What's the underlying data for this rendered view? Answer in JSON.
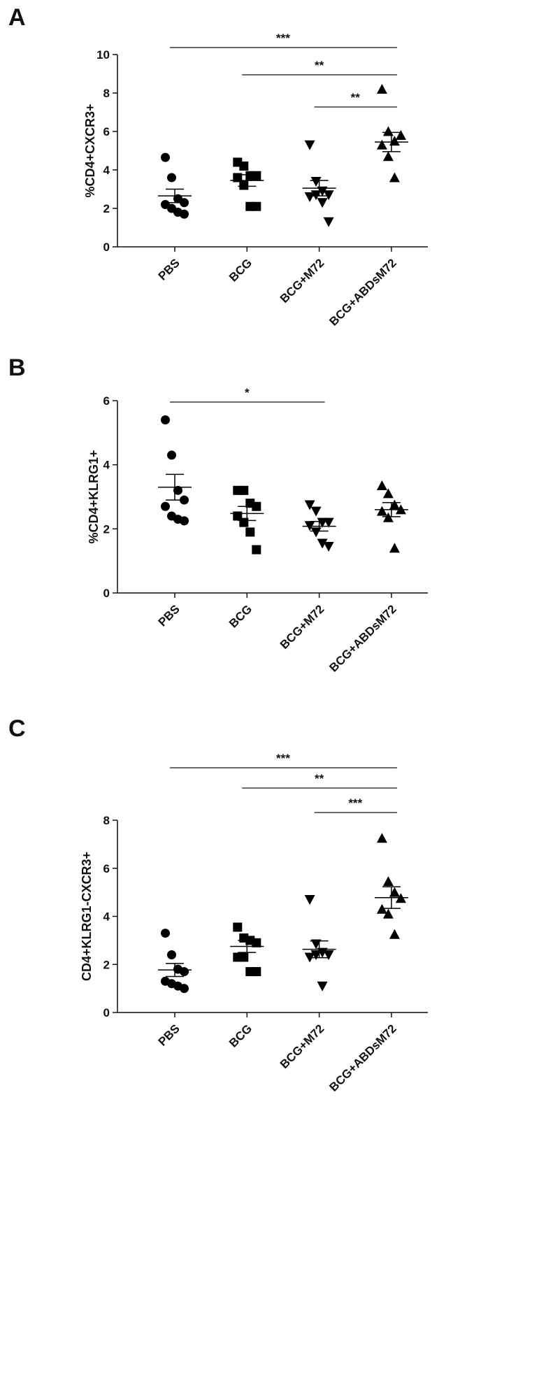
{
  "chart_data": [
    {
      "type": "dot",
      "panel": "A",
      "ylabel": "%CD4+CXCR3+",
      "categories": [
        "PBS",
        "BCG",
        "BCG+M72",
        "BCG+ABDsM72"
      ],
      "markers": [
        "circle",
        "square",
        "triangle-down",
        "triangle-up"
      ],
      "color": "#000000",
      "values": [
        [
          4.65,
          3.6,
          2.5,
          2.3,
          2.2,
          2.0,
          1.8,
          1.7
        ],
        [
          4.4,
          4.2,
          3.7,
          3.7,
          3.6,
          3.2,
          2.1,
          2.1
        ],
        [
          5.3,
          3.4,
          2.9,
          2.7,
          2.6,
          2.7,
          2.3,
          1.3
        ],
        [
          8.2,
          6.0,
          5.5,
          5.8,
          5.3,
          4.7,
          3.6
        ]
      ],
      "means": [
        2.65,
        3.45,
        3.05,
        5.45
      ],
      "errors": [
        0.35,
        0.3,
        0.4,
        0.5
      ],
      "ylim": [
        0,
        10
      ],
      "yticks": [
        0,
        2,
        4,
        6,
        8,
        10
      ],
      "significance": [
        {
          "label": "***",
          "from": "PBS",
          "to": "BCG+ABDsM72"
        },
        {
          "label": "**",
          "from": "BCG",
          "to": "BCG+ABDsM72"
        },
        {
          "label": "**",
          "from": "BCG+M72",
          "to": "BCG+ABDsM72"
        }
      ]
    },
    {
      "type": "dot",
      "panel": "B",
      "ylabel": "%CD4+KLRG1+",
      "categories": [
        "PBS",
        "BCG",
        "BCG+M72",
        "BCG+ABDsM72"
      ],
      "markers": [
        "circle",
        "square",
        "triangle-down",
        "triangle-up"
      ],
      "color": "#000000",
      "values": [
        [
          5.4,
          4.3,
          3.2,
          2.9,
          2.7,
          2.4,
          2.3,
          2.25
        ],
        [
          3.2,
          3.2,
          2.8,
          2.7,
          2.4,
          2.2,
          1.9,
          1.35
        ],
        [
          2.75,
          2.55,
          2.2,
          2.2,
          2.1,
          1.9,
          1.55,
          1.45
        ],
        [
          3.35,
          3.1,
          2.75,
          2.6,
          2.55,
          2.35,
          1.4
        ]
      ],
      "means": [
        3.3,
        2.48,
        2.08,
        2.6
      ],
      "errors": [
        0.4,
        0.22,
        0.15,
        0.22
      ],
      "ylim": [
        0,
        6
      ],
      "yticks": [
        0,
        2,
        4,
        6
      ],
      "significance": [
        {
          "label": "*",
          "from": "PBS",
          "to": "BCG+M72"
        }
      ]
    },
    {
      "type": "dot",
      "panel": "C",
      "ylabel": "CD4+KLRG1-CXCR3+",
      "categories": [
        "PBS",
        "BCG",
        "BCG+M72",
        "BCG+ABDsM72"
      ],
      "markers": [
        "circle",
        "square",
        "triangle-down",
        "triangle-up"
      ],
      "color": "#000000",
      "values": [
        [
          3.3,
          2.4,
          1.8,
          1.7,
          1.3,
          1.2,
          1.1,
          1.0
        ],
        [
          3.55,
          3.1,
          3.0,
          2.9,
          2.3,
          2.3,
          1.7,
          1.7
        ],
        [
          4.7,
          2.85,
          2.5,
          2.4,
          2.3,
          2.4,
          1.1
        ],
        [
          7.25,
          5.45,
          5.0,
          4.75,
          4.3,
          4.1,
          3.25
        ]
      ],
      "means": [
        1.77,
        2.75,
        2.63,
        4.78
      ],
      "errors": [
        0.27,
        0.25,
        0.35,
        0.45
      ],
      "ylim": [
        0,
        8
      ],
      "yticks": [
        0,
        2,
        4,
        6,
        8
      ],
      "significance": [
        {
          "label": "***",
          "from": "PBS",
          "to": "BCG+ABDsM72"
        },
        {
          "label": "**",
          "from": "BCG",
          "to": "BCG+ABDsM72"
        },
        {
          "label": "***",
          "from": "BCG+M72",
          "to": "BCG+ABDsM72"
        }
      ]
    }
  ]
}
